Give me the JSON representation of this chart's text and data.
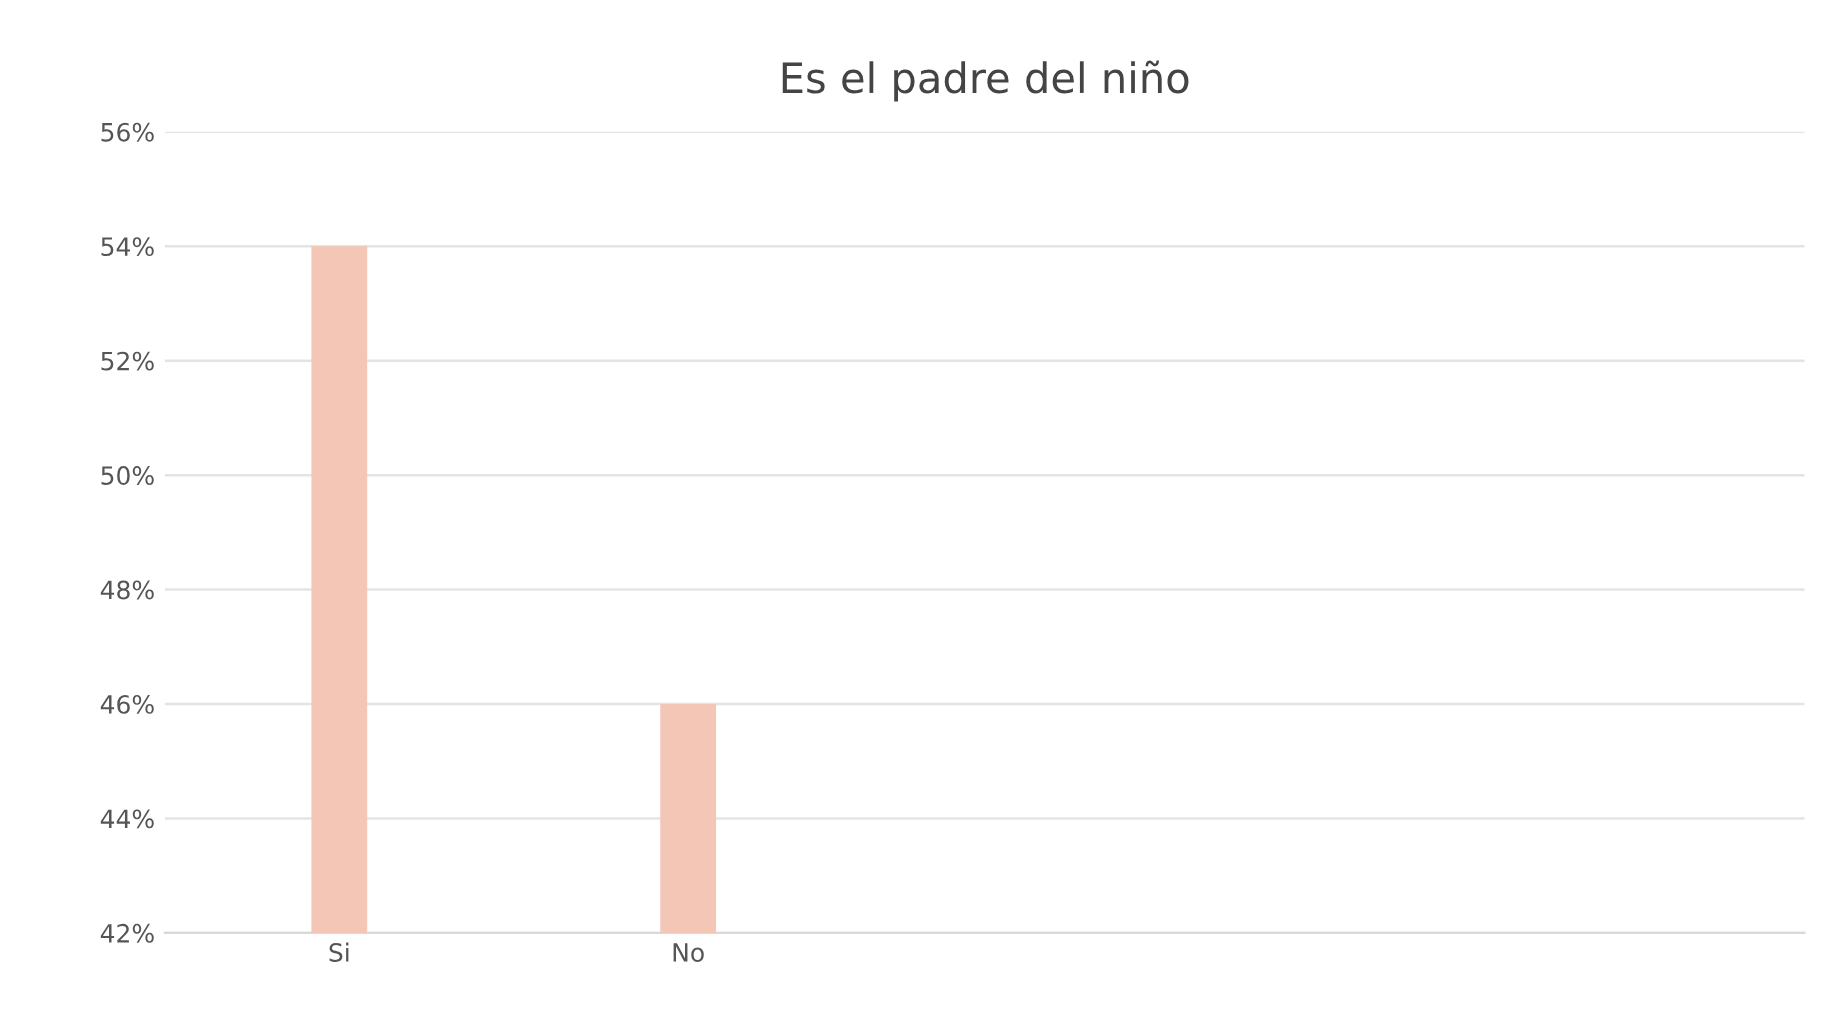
{
  "chart_data": {
    "type": "bar",
    "title": "Es el padre del niño",
    "categories": [
      "Si",
      "No"
    ],
    "values": [
      54,
      46
    ],
    "color": "#f3c6b6",
    "ylim": [
      42,
      56
    ],
    "yticks": [
      {
        "value": 42,
        "label": "42%"
      },
      {
        "value": 44,
        "label": "44%"
      },
      {
        "value": 46,
        "label": "46%"
      },
      {
        "value": 48,
        "label": "48%"
      },
      {
        "value": 50,
        "label": "50%"
      },
      {
        "value": 52,
        "label": "52%"
      },
      {
        "value": 54,
        "label": "54%"
      },
      {
        "value": 56,
        "label": "56%"
      }
    ],
    "grid": "y"
  }
}
